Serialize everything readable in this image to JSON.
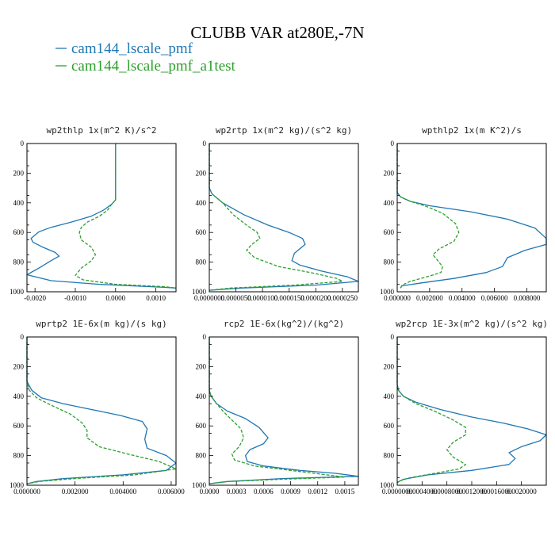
{
  "figure": {
    "title": "CLUBB VAR at280E,-7N",
    "legend": [
      {
        "label": "cam144_lscale_pmf",
        "color": "#1f77b4",
        "dash": false
      },
      {
        "label": "cam144_lscale_pmf_a1test",
        "color": "#2ca02c",
        "dash": true
      }
    ]
  },
  "chart_data": [
    {
      "type": "line",
      "title": "wp2thlp  1x(m^2 K)/s^2",
      "ylim": [
        1000,
        0
      ],
      "xlim": [
        -0.0022,
        0.0015
      ],
      "xticks": [
        "-0.0020",
        "-0.0010",
        "0.0000",
        "0.0010"
      ],
      "xtick_values": [
        -0.002,
        -0.001,
        0.0,
        0.001
      ],
      "yticks": [
        "0",
        "200",
        "400",
        "600",
        "800",
        "1000"
      ],
      "series": [
        {
          "name": "cam144_lscale_pmf",
          "color": "#1f77b4",
          "dashed": false,
          "x": [
            0,
            0,
            -0.0001,
            -0.0003,
            -0.0006,
            -0.0011,
            -0.0016,
            -0.0019,
            -0.0021,
            -0.00205,
            -0.0018,
            -0.0015,
            -0.0014,
            -0.0016,
            -0.0019,
            -0.0022,
            -0.0016,
            -0.0004,
            0.0012,
            0.0015
          ],
          "y": [
            0,
            380,
            410,
            450,
            490,
            530,
            565,
            595,
            640,
            665,
            700,
            735,
            760,
            790,
            840,
            885,
            925,
            950,
            970,
            975
          ]
        },
        {
          "name": "cam144_lscale_pmf_a1test",
          "color": "#2ca02c",
          "dashed": true,
          "x": [
            0,
            0,
            -0.0001,
            -0.0002,
            -0.0004,
            -0.0007,
            -0.00085,
            -0.0009,
            -0.00085,
            -0.0006,
            -0.0005,
            -0.0006,
            -0.00085,
            -0.001,
            -0.0008,
            0.0,
            0.0012,
            0.0015
          ],
          "y": [
            0,
            380,
            410,
            450,
            490,
            530,
            565,
            600,
            650,
            700,
            750,
            790,
            840,
            890,
            920,
            950,
            965,
            975
          ]
        }
      ]
    },
    {
      "type": "line",
      "title": "wp2rtp  1x(m^2 kg)/(s^2 kg)",
      "ylim": [
        1000,
        0
      ],
      "xlim": [
        0,
        2.8e-05
      ],
      "xticks": [
        "0.0000000",
        "0.0000050",
        "0.0000100",
        "0.0000150",
        "0.0000200",
        "0.0000250"
      ],
      "xtick_values": [
        0,
        5e-06,
        1e-05,
        1.5e-05,
        2e-05,
        2.5e-05
      ],
      "yticks": [
        "0",
        "200",
        "400",
        "600",
        "800",
        "1000"
      ],
      "series": [
        {
          "name": "cam144_lscale_pmf",
          "color": "#1f77b4",
          "dashed": false,
          "x": [
            0,
            0,
            5e-07,
            2.5e-06,
            6.5e-06,
            1.1e-05,
            1.5e-05,
            1.75e-05,
            1.8e-05,
            1.6e-05,
            1.55e-05,
            1.7e-05,
            2.1e-05,
            2.6e-05,
            2.8e-05,
            2e-05,
            6e-06,
            0
          ],
          "y": [
            0,
            300,
            340,
            400,
            480,
            550,
            600,
            640,
            680,
            740,
            790,
            820,
            860,
            900,
            930,
            955,
            975,
            990
          ]
        },
        {
          "name": "cam144_lscale_pmf_a1test",
          "color": "#2ca02c",
          "dashed": true,
          "x": [
            0,
            0,
            5e-07,
            2.5e-06,
            4.5e-06,
            7e-06,
            9e-06,
            9.5e-06,
            8e-06,
            7e-06,
            8.5e-06,
            1.3e-05,
            1.9e-05,
            2.4e-05,
            2.5e-05,
            1.6e-05,
            4e-06,
            0
          ],
          "y": [
            0,
            300,
            340,
            400,
            480,
            550,
            600,
            640,
            680,
            720,
            770,
            830,
            870,
            910,
            930,
            955,
            975,
            990
          ]
        }
      ]
    },
    {
      "type": "line",
      "title": "wpthlp2  1x(m K^2)/s",
      "ylim": [
        1000,
        0
      ],
      "xlim": [
        0,
        0.0092
      ],
      "xticks": [
        "0.000000",
        "0.002000",
        "0.004000",
        "0.006000",
        "0.008000"
      ],
      "xtick_values": [
        0,
        0.002,
        0.004,
        0.006,
        0.008
      ],
      "yticks": [
        "0",
        "200",
        "400",
        "600",
        "800",
        "1000"
      ],
      "series": [
        {
          "name": "cam144_lscale_pmf",
          "color": "#1f77b4",
          "dashed": false,
          "x": [
            0,
            0,
            0.0002,
            0.0008,
            0.002,
            0.0045,
            0.0068,
            0.0085,
            0.0092,
            0.0092,
            0.0079,
            0.0068,
            0.0065,
            0.0055,
            0.0035,
            0.0015,
            0.0003,
            0.0002
          ],
          "y": [
            0,
            330,
            360,
            390,
            420,
            460,
            510,
            570,
            640,
            680,
            720,
            770,
            830,
            870,
            910,
            940,
            960,
            975
          ]
        },
        {
          "name": "cam144_lscale_pmf_a1test",
          "color": "#2ca02c",
          "dashed": true,
          "x": [
            0,
            0,
            0.0002,
            0.0008,
            0.0017,
            0.0028,
            0.0036,
            0.0038,
            0.0035,
            0.0026,
            0.0022,
            0.0025,
            0.0028,
            0.0027,
            0.0018,
            0.0008,
            0.0003,
            0.0002
          ],
          "y": [
            0,
            330,
            360,
            390,
            420,
            470,
            540,
            600,
            660,
            710,
            750,
            790,
            830,
            870,
            900,
            930,
            955,
            975
          ]
        }
      ]
    },
    {
      "type": "line",
      "title": "wprtp2  1E-6x(m kg)/(s kg)",
      "ylim": [
        1000,
        0
      ],
      "xlim": [
        0,
        0.0062
      ],
      "xticks": [
        "0.000000",
        "0.002000",
        "0.004000",
        "0.006000"
      ],
      "xtick_values": [
        0,
        0.002,
        0.004,
        0.006
      ],
      "yticks": [
        "0",
        "200",
        "400",
        "600",
        "800",
        "1000"
      ],
      "series": [
        {
          "name": "cam144_lscale_pmf",
          "color": "#1f77b4",
          "dashed": false,
          "x": [
            0,
            0,
            0.0002,
            0.0006,
            0.0015,
            0.0027,
            0.0039,
            0.0048,
            0.005,
            0.0049,
            0.005,
            0.0058,
            0.0062,
            0.0058,
            0.004,
            0.0015,
            0.0004,
            0
          ],
          "y": [
            0,
            300,
            360,
            410,
            450,
            490,
            530,
            570,
            620,
            690,
            750,
            800,
            850,
            900,
            930,
            955,
            975,
            990
          ]
        },
        {
          "name": "cam144_lscale_pmf_a1test",
          "color": "#2ca02c",
          "dashed": true,
          "x": [
            0,
            0,
            0.0001,
            0.0004,
            0.001,
            0.0018,
            0.0023,
            0.0025,
            0.0025,
            0.003,
            0.0042,
            0.0055,
            0.0062,
            0.0045,
            0.002,
            0.0005,
            0
          ],
          "y": [
            0,
            300,
            360,
            410,
            460,
            520,
            580,
            630,
            680,
            740,
            790,
            840,
            890,
            930,
            955,
            975,
            990
          ]
        }
      ]
    },
    {
      "type": "line",
      "title": "rcp2  1E-6x(kg^2)/(kg^2)",
      "ylim": [
        1000,
        0
      ],
      "xlim": [
        0,
        0.00165
      ],
      "xticks": [
        "0.0000",
        "0.0003",
        "0.0006",
        "0.0009",
        "0.0012",
        "0.0015"
      ],
      "xtick_values": [
        0,
        0.0003,
        0.0006,
        0.0009,
        0.0012,
        0.0015
      ],
      "yticks": [
        "0",
        "200",
        "400",
        "600",
        "800",
        "1000"
      ],
      "series": [
        {
          "name": "cam144_lscale_pmf",
          "color": "#1f77b4",
          "dashed": false,
          "x": [
            0,
            0,
            2e-05,
            8e-05,
            0.0002,
            0.0004,
            0.00055,
            0.00065,
            0.0006,
            0.00045,
            0.0004,
            0.00042,
            0.0006,
            0.001,
            0.0014,
            0.00165,
            0.0008,
            0.0002,
            0
          ],
          "y": [
            0,
            360,
            400,
            450,
            500,
            550,
            610,
            680,
            720,
            760,
            800,
            840,
            870,
            900,
            920,
            940,
            955,
            975,
            990
          ]
        },
        {
          "name": "cam144_lscale_pmf_a1test",
          "color": "#2ca02c",
          "dashed": true,
          "x": [
            0,
            0,
            2e-05,
            8e-05,
            0.00015,
            0.00025,
            0.00035,
            0.00038,
            0.00033,
            0.00025,
            0.00028,
            0.0005,
            0.0009,
            0.0013,
            0.0015,
            0.0008,
            0.0002,
            0
          ],
          "y": [
            0,
            360,
            400,
            450,
            500,
            560,
            620,
            680,
            740,
            790,
            830,
            870,
            900,
            930,
            945,
            960,
            975,
            990
          ]
        }
      ]
    },
    {
      "type": "line",
      "title": "wp2rcp  1E-3x(m^2 kg)/(s^2 kg)",
      "ylim": [
        1000,
        0
      ],
      "xlim": [
        0,
        0.0024
      ],
      "xticks": [
        "0.0000000",
        "0.0004000",
        "0.0008000",
        "0.0012000",
        "0.0016000",
        "0.0020000"
      ],
      "xtick_values": [
        0,
        0.0004,
        0.0008,
        0.0012,
        0.0016,
        0.002
      ],
      "yticks": [
        "0",
        "200",
        "400",
        "600",
        "800",
        "1000"
      ],
      "series": [
        {
          "name": "cam144_lscale_pmf",
          "color": "#1f77b4",
          "dashed": false,
          "x": [
            0,
            0,
            2e-05,
            0.0001,
            0.0003,
            0.0007,
            0.0012,
            0.0017,
            0.0021,
            0.0024,
            0.0023,
            0.002,
            0.0018,
            0.0019,
            0.0018,
            0.0012,
            0.0005,
            0.0001,
            0
          ],
          "y": [
            0,
            320,
            360,
            400,
            440,
            490,
            540,
            580,
            620,
            660,
            700,
            740,
            780,
            820,
            860,
            900,
            930,
            960,
            980
          ]
        },
        {
          "name": "cam144_lscale_pmf_a1test",
          "color": "#2ca02c",
          "dashed": true,
          "x": [
            0,
            0,
            2e-05,
            0.0001,
            0.0003,
            0.0006,
            0.0009,
            0.0011,
            0.0011,
            0.0009,
            0.0008,
            0.0009,
            0.0011,
            0.001,
            0.0006,
            0.0002,
            5e-05,
            0
          ],
          "y": [
            0,
            320,
            360,
            400,
            450,
            500,
            560,
            610,
            660,
            710,
            760,
            810,
            860,
            890,
            920,
            950,
            970,
            985
          ]
        }
      ]
    }
  ]
}
